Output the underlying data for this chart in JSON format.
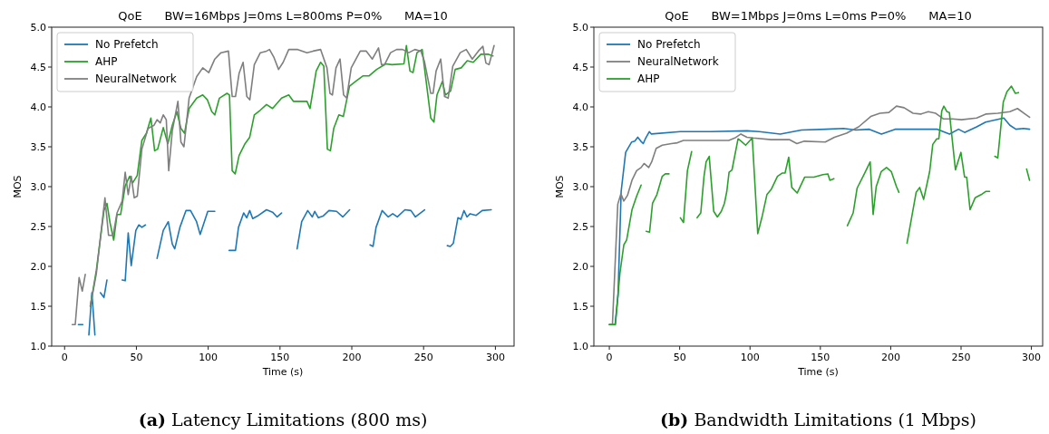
{
  "chart_data": [
    {
      "type": "line",
      "title": "QoE      BW=16Mbps J=0ms L=800ms P=0%      MA=10",
      "xlabel": "Time (s)",
      "ylabel": "MOS",
      "annotations": [
        "(a) Latency Limitations (800 ms)"
      ],
      "xlim": [
        -9,
        313
      ],
      "ylim": [
        1,
        5
      ],
      "xticks": [
        0,
        50,
        100,
        150,
        200,
        250,
        300
      ],
      "yticks": [
        {
          "value": 1,
          "label": "1.0"
        },
        {
          "value": 1.5,
          "label": "1.5"
        },
        {
          "value": 2,
          "label": "2.0"
        },
        {
          "value": 2.5,
          "label": "2.5"
        },
        {
          "value": 3,
          "label": "3.0"
        },
        {
          "value": 3.5,
          "label": "3.5"
        },
        {
          "value": 4,
          "label": "4.0"
        },
        {
          "value": 4.5,
          "label": "4.5"
        },
        {
          "value": 5,
          "label": "5.0"
        }
      ],
      "legend": "top left",
      "grid": false,
      "line_style": "solid",
      "marker": "none",
      "series": [
        {
          "name": "No Prefetch",
          "color": "#1f77b4",
          "x": [
            9.6,
            12.7,
            15,
            16.9,
            19,
            21.1,
            23,
            24.9,
            27.4,
            29.5,
            35,
            40.1,
            42.2,
            44.3,
            46.4,
            49.6,
            51.7,
            53.8,
            56.3,
            60,
            64.4,
            68.7,
            72.2,
            75,
            76.7,
            80.3,
            84.5,
            87.7,
            91.9,
            94.4,
            99.7,
            104.6,
            110,
            114.6,
            119,
            121.1,
            124.7,
            126.8,
            128.9,
            131,
            134.2,
            140.6,
            144.8,
            148,
            151.1,
            157,
            161.9,
            165.1,
            169.3,
            172.5,
            174.2,
            176.7,
            179.9,
            184.1,
            189.4,
            193.7,
            198.5,
            205,
            212.7,
            214.8,
            216.9,
            221.1,
            225.4,
            228.5,
            231.7,
            237,
            241.2,
            244.3,
            250.7,
            258,
            266.5,
            268.6,
            270.7,
            273.9,
            276,
            278.1,
            280.2,
            282.4,
            286.6,
            290.8,
            297.1
          ],
          "values": [
            1.27,
            1.27,
            null,
            1.14,
            1.67,
            1.14,
            null,
            1.67,
            1.61,
            1.83,
            null,
            1.83,
            1.82,
            2.42,
            2.01,
            2.45,
            2.52,
            2.49,
            2.52,
            null,
            2.1,
            2.45,
            2.56,
            2.28,
            2.22,
            2.49,
            2.7,
            2.7,
            2.56,
            2.4,
            2.69,
            2.69,
            null,
            2.2,
            2.2,
            2.49,
            2.67,
            2.61,
            2.7,
            2.6,
            2.63,
            2.71,
            2.68,
            2.62,
            2.67,
            null,
            2.22,
            2.56,
            2.7,
            2.62,
            2.69,
            2.61,
            2.63,
            2.7,
            2.69,
            2.62,
            2.71,
            null,
            2.27,
            2.25,
            2.49,
            2.7,
            2.62,
            2.66,
            2.62,
            2.71,
            2.7,
            2.62,
            2.71,
            null,
            2.26,
            2.25,
            2.29,
            2.61,
            2.59,
            2.7,
            2.62,
            2.66,
            2.64,
            2.7,
            2.71
          ]
        },
        {
          "name": "AHP",
          "color": "#2ca02c",
          "x": [
            17.9,
            22.1,
            27.4,
            29.5,
            31.6,
            34.2,
            36.5,
            39,
            42.2,
            45.3,
            47.5,
            50.6,
            53.8,
            57,
            60.1,
            62.7,
            64.8,
            68.7,
            71.9,
            75,
            78.2,
            81,
            83.5,
            86.7,
            92,
            96.2,
            99.4,
            102.5,
            104.6,
            107.8,
            113.1,
            114.8,
            116.7,
            118.8,
            121.5,
            125.7,
            128.9,
            132.1,
            136.3,
            140.6,
            144.8,
            151.1,
            156.1,
            159.3,
            168.8,
            170.9,
            175.2,
            178.3,
            180.5,
            183,
            185.1,
            187.4,
            191,
            194.1,
            198.4,
            202.6,
            207.9,
            212.1,
            217.3,
            223.7,
            227.9,
            236.3,
            238,
            240.5,
            242.6,
            245.4,
            249,
            255,
            257.2,
            259.3,
            263.1,
            265.2,
            268.8,
            272,
            276.2,
            280.4,
            284.6,
            289.9,
            295.2,
            298.3
          ],
          "values": [
            1.5,
            1.95,
            2.7,
            2.79,
            2.55,
            2.33,
            2.65,
            2.65,
            3.01,
            3.13,
            3.05,
            3.14,
            3.58,
            3.67,
            3.86,
            3.45,
            3.47,
            3.74,
            3.54,
            3.77,
            3.94,
            3.73,
            3.67,
            3.98,
            4.11,
            4.15,
            4.09,
            3.94,
            3.9,
            4.11,
            4.17,
            4.15,
            3.2,
            3.16,
            3.39,
            3.54,
            3.62,
            3.9,
            3.96,
            4.03,
            3.98,
            4.11,
            4.15,
            4.07,
            4.07,
            3.98,
            4.45,
            4.56,
            4.51,
            3.47,
            3.45,
            3.73,
            3.9,
            3.88,
            4.26,
            4.32,
            4.39,
            4.39,
            4.47,
            4.54,
            4.53,
            4.54,
            4.77,
            4.45,
            4.43,
            4.68,
            4.72,
            3.86,
            3.81,
            4.15,
            4.32,
            4.15,
            4.2,
            4.47,
            4.49,
            4.58,
            4.56,
            4.66,
            4.66,
            4.64
          ]
        },
        {
          "name": "NeuralNetwork",
          "color": "#7f7f7f",
          "x": [
            5.3,
            7.4,
            10.1,
            12.3,
            14.4,
            16,
            17.9,
            22.1,
            28.1,
            30.6,
            33.8,
            36.5,
            40.1,
            42.2,
            44.3,
            46.4,
            48.5,
            50.6,
            53.8,
            58.1,
            62.3,
            64.4,
            66.6,
            68.7,
            70.8,
            72.5,
            75,
            78.9,
            81,
            83.1,
            86.7,
            92,
            96.2,
            100.4,
            104.6,
            108.9,
            114.1,
            116.7,
            119,
            121.5,
            124.3,
            126.9,
            129,
            132.1,
            136.3,
            140.6,
            142.7,
            145.8,
            149,
            152.2,
            156.1,
            162.4,
            168.8,
            173,
            178.3,
            182.7,
            184.8,
            186.5,
            189,
            191.8,
            194.3,
            196.4,
            199.6,
            205.9,
            210.1,
            214.3,
            218.6,
            220.7,
            222.8,
            227,
            231.2,
            235.4,
            239.7,
            243.9,
            248.1,
            250.6,
            255,
            256.6,
            258.7,
            261.9,
            264.6,
            267.1,
            270.3,
            275.5,
            279.7,
            283.9,
            288.1,
            291.3,
            293.4,
            295.6,
            299.1
          ],
          "values": [
            1.27,
            1.27,
            1.86,
            1.69,
            1.9,
            null,
            1.5,
            1.91,
            2.86,
            2.39,
            2.39,
            2.67,
            2.82,
            3.18,
            2.9,
            3.13,
            2.86,
            2.88,
            3.47,
            3.73,
            3.77,
            3.84,
            3.8,
            3.9,
            3.84,
            3.2,
            3.7,
            4.07,
            3.56,
            3.5,
            4.11,
            4.38,
            4.49,
            4.43,
            4.6,
            4.68,
            4.7,
            4.13,
            4.13,
            4.42,
            4.56,
            4.13,
            4.09,
            4.53,
            4.68,
            4.7,
            4.72,
            4.62,
            4.47,
            4.56,
            4.72,
            4.72,
            4.68,
            4.7,
            4.72,
            4.49,
            4.17,
            4.15,
            4.49,
            4.6,
            4.15,
            4.11,
            4.49,
            4.7,
            4.7,
            4.6,
            4.74,
            4.53,
            4.53,
            4.68,
            4.72,
            4.72,
            4.68,
            4.72,
            4.7,
            4.57,
            4.17,
            4.17,
            4.45,
            4.6,
            4.13,
            4.11,
            4.51,
            4.68,
            4.72,
            4.6,
            4.7,
            4.76,
            4.55,
            4.53,
            4.77
          ]
        }
      ]
    },
    {
      "type": "line",
      "title": "QoE      BW=1Mbps J=0ms L=0ms P=0%      MA=10",
      "xlabel": "Time (s)",
      "ylabel": "MOS",
      "annotations": [
        "(b) Bandwidth Limitations (1 Mbps)"
      ],
      "xlim": [
        -11,
        308
      ],
      "ylim": [
        1,
        5
      ],
      "xticks": [
        0,
        50,
        100,
        150,
        200,
        250,
        300
      ],
      "yticks": [
        {
          "value": 1,
          "label": "1.0"
        },
        {
          "value": 1.5,
          "label": "1.5"
        },
        {
          "value": 2,
          "label": "2.0"
        },
        {
          "value": 2.5,
          "label": "2.5"
        },
        {
          "value": 3,
          "label": "3.0"
        },
        {
          "value": 3.5,
          "label": "3.5"
        },
        {
          "value": 4,
          "label": "4.0"
        },
        {
          "value": 4.5,
          "label": "4.5"
        },
        {
          "value": 5,
          "label": "5.0"
        }
      ],
      "legend": "top left",
      "grid": false,
      "line_style": "solid",
      "marker": "none",
      "series": [
        {
          "name": "No Prefetch",
          "color": "#1f77b4",
          "x": [
            0,
            4.1,
            6.2,
            8.4,
            11.6,
            15.9,
            18.1,
            20.2,
            22.4,
            24.1,
            25.6,
            28.4,
            29.9,
            50.5,
            72,
            97.8,
            106.5,
            121.5,
            136.6,
            153.8,
            166.5,
            175.1,
            184.8,
            193.4,
            203.1,
            218.1,
            233.2,
            241.8,
            248.2,
            252.5,
            261.1,
            267.5,
            280.4,
            284.7,
            289,
            294.4,
            298.7
          ],
          "values": [
            1.27,
            1.27,
            1.65,
            2.94,
            3.43,
            3.56,
            3.57,
            3.62,
            3.57,
            3.54,
            3.6,
            3.69,
            3.66,
            3.69,
            3.69,
            3.7,
            3.69,
            3.66,
            3.71,
            3.72,
            3.73,
            3.71,
            3.72,
            3.66,
            3.72,
            3.72,
            3.72,
            3.66,
            3.72,
            3.68,
            3.75,
            3.81,
            3.86,
            3.77,
            3.72,
            3.73,
            3.72
          ]
        },
        {
          "name": "NeuralNetwork",
          "color": "#7f7f7f",
          "x": [
            0,
            2.2,
            6,
            8.2,
            10.3,
            12.9,
            16.1,
            19.4,
            22.6,
            24.7,
            28,
            30.1,
            33.3,
            37.6,
            44.1,
            48.4,
            52.7,
            72,
            84.9,
            89.2,
            93.5,
            97.8,
            102.1,
            115,
            127.9,
            133.3,
            138.6,
            153.5,
            160,
            168.6,
            177.2,
            185.8,
            192.3,
            198.7,
            204.1,
            209.5,
            215.9,
            221.3,
            226.7,
            232,
            237.4,
            243.9,
            250.3,
            261.1,
            267.5,
            276.1,
            284.7,
            290.1,
            295.5,
            298.7
          ],
          "values": [
            1.27,
            1.27,
            2.78,
            2.91,
            2.82,
            2.89,
            3.08,
            3.2,
            3.24,
            3.29,
            3.24,
            3.31,
            3.48,
            3.52,
            3.54,
            3.55,
            3.58,
            3.58,
            3.58,
            3.61,
            3.66,
            3.62,
            3.61,
            3.59,
            3.59,
            3.54,
            3.57,
            3.56,
            3.62,
            3.67,
            3.75,
            3.88,
            3.92,
            3.93,
            4.01,
            3.99,
            3.92,
            3.91,
            3.94,
            3.92,
            3.85,
            3.85,
            3.84,
            3.86,
            3.91,
            3.92,
            3.94,
            3.98,
            3.91,
            3.87
          ]
        },
        {
          "name": "AHP",
          "color": "#2ca02c",
          "x": [
            0,
            4.3,
            7.5,
            10.3,
            12.3,
            16.1,
            19.4,
            22.6,
            24.5,
            26.2,
            28.6,
            30.7,
            33.8,
            37.6,
            39.8,
            42.4,
            46,
            50.5,
            52.7,
            55.5,
            58.5,
            60.5,
            62.4,
            65,
            67.3,
            68.8,
            71,
            74.2,
            76.8,
            79.6,
            81.8,
            83.5,
            85.1,
            87.2,
            91.5,
            93.7,
            96.9,
            101.6,
            105.5,
            108.8,
            112,
            115.2,
            119.5,
            122.8,
            124.9,
            127.5,
            129.7,
            133.5,
            138.9,
            145.4,
            151.8,
            155.3,
            156.8,
            159.6,
            164,
            169.2,
            173.3,
            176.1,
            181.5,
            185.4,
            187.5,
            189.7,
            193.3,
            197,
            200.4,
            204.1,
            205.8,
            208.5,
            211.6,
            218.1,
            220.6,
            223.4,
            227.7,
            229.9,
            232.7,
            234.2,
            236.3,
            237.8,
            240,
            241.7,
            246,
            249.9,
            252.5,
            254,
            256.4,
            260,
            264.3,
            267.5,
            270.3,
            272,
            274,
            276.1,
            280,
            282.6,
            285.8,
            288.6,
            290.8,
            293.5,
            296.6,
            298.7
          ],
          "values": [
            1.27,
            1.27,
            1.91,
            2.27,
            2.33,
            2.71,
            2.88,
            3.02,
            null,
            2.44,
            2.43,
            2.79,
            2.9,
            3.13,
            3.16,
            3.16,
            null,
            2.61,
            2.55,
            3.2,
            3.44,
            null,
            2.61,
            2.67,
            3.13,
            3.31,
            3.38,
            2.69,
            2.62,
            2.69,
            2.79,
            2.94,
            3.18,
            3.21,
            3.6,
            3.57,
            3.52,
            3.61,
            2.41,
            2.64,
            2.9,
            2.97,
            3.13,
            3.17,
            3.17,
            3.37,
            2.99,
            2.92,
            3.12,
            3.12,
            3.15,
            3.16,
            3.08,
            3.1,
            null,
            2.51,
            2.67,
            2.98,
            3.17,
            3.31,
            2.65,
            3,
            3.19,
            3.24,
            3.19,
            3,
            2.93,
            null,
            2.29,
            2.93,
            2.99,
            2.84,
            3.19,
            3.53,
            3.6,
            3.6,
            3.95,
            4.01,
            3.94,
            3.93,
            3.21,
            3.43,
            3.12,
            3.12,
            2.71,
            2.86,
            2.9,
            2.94,
            2.94,
            null,
            3.38,
            3.36,
            4.06,
            4.19,
            4.26,
            4.17,
            4.18,
            null,
            3.22,
            3.08
          ]
        }
      ]
    }
  ]
}
